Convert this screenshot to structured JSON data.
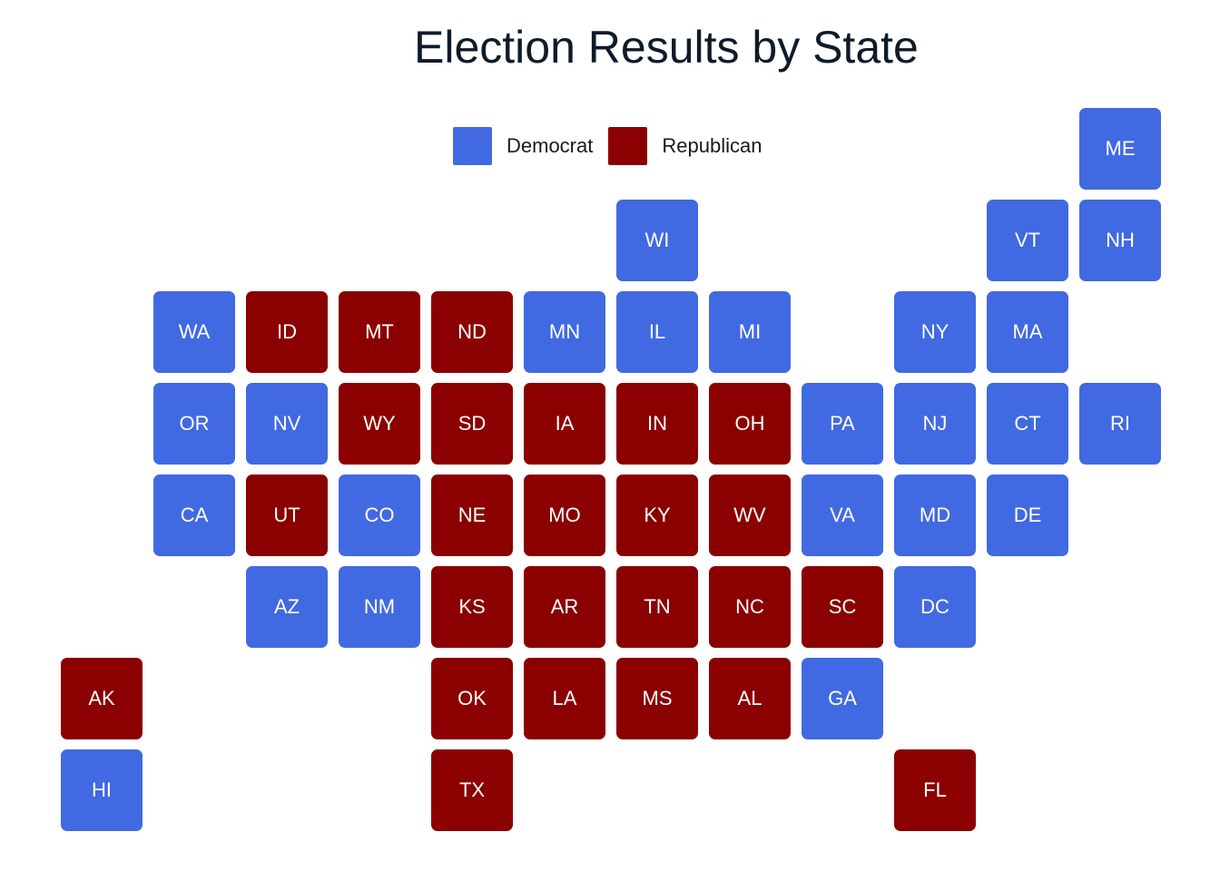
{
  "chart_data": {
    "type": "tile-grid-map",
    "title": "Election Results by State",
    "legend": {
      "placement": "top",
      "entries": [
        {
          "name": "Democrat",
          "color": "#4169e1"
        },
        {
          "name": "Republican",
          "color": "#8b0000"
        }
      ]
    },
    "grid": {
      "columns": 12,
      "rows": 8
    },
    "states": [
      {
        "abbr": "ME",
        "col": 11,
        "row": 0,
        "party": "Democrat"
      },
      {
        "abbr": "WI",
        "col": 6,
        "row": 1,
        "party": "Democrat"
      },
      {
        "abbr": "VT",
        "col": 10,
        "row": 1,
        "party": "Democrat"
      },
      {
        "abbr": "NH",
        "col": 11,
        "row": 1,
        "party": "Democrat"
      },
      {
        "abbr": "WA",
        "col": 1,
        "row": 2,
        "party": "Democrat"
      },
      {
        "abbr": "ID",
        "col": 2,
        "row": 2,
        "party": "Republican"
      },
      {
        "abbr": "MT",
        "col": 3,
        "row": 2,
        "party": "Republican"
      },
      {
        "abbr": "ND",
        "col": 4,
        "row": 2,
        "party": "Republican"
      },
      {
        "abbr": "MN",
        "col": 5,
        "row": 2,
        "party": "Democrat"
      },
      {
        "abbr": "IL",
        "col": 6,
        "row": 2,
        "party": "Democrat"
      },
      {
        "abbr": "MI",
        "col": 7,
        "row": 2,
        "party": "Democrat"
      },
      {
        "abbr": "NY",
        "col": 9,
        "row": 2,
        "party": "Democrat"
      },
      {
        "abbr": "MA",
        "col": 10,
        "row": 2,
        "party": "Democrat"
      },
      {
        "abbr": "OR",
        "col": 1,
        "row": 3,
        "party": "Democrat"
      },
      {
        "abbr": "NV",
        "col": 2,
        "row": 3,
        "party": "Democrat"
      },
      {
        "abbr": "WY",
        "col": 3,
        "row": 3,
        "party": "Republican"
      },
      {
        "abbr": "SD",
        "col": 4,
        "row": 3,
        "party": "Republican"
      },
      {
        "abbr": "IA",
        "col": 5,
        "row": 3,
        "party": "Republican"
      },
      {
        "abbr": "IN",
        "col": 6,
        "row": 3,
        "party": "Republican"
      },
      {
        "abbr": "OH",
        "col": 7,
        "row": 3,
        "party": "Republican"
      },
      {
        "abbr": "PA",
        "col": 8,
        "row": 3,
        "party": "Democrat"
      },
      {
        "abbr": "NJ",
        "col": 9,
        "row": 3,
        "party": "Democrat"
      },
      {
        "abbr": "CT",
        "col": 10,
        "row": 3,
        "party": "Democrat"
      },
      {
        "abbr": "RI",
        "col": 11,
        "row": 3,
        "party": "Democrat"
      },
      {
        "abbr": "CA",
        "col": 1,
        "row": 4,
        "party": "Democrat"
      },
      {
        "abbr": "UT",
        "col": 2,
        "row": 4,
        "party": "Republican"
      },
      {
        "abbr": "CO",
        "col": 3,
        "row": 4,
        "party": "Democrat"
      },
      {
        "abbr": "NE",
        "col": 4,
        "row": 4,
        "party": "Republican"
      },
      {
        "abbr": "MO",
        "col": 5,
        "row": 4,
        "party": "Republican"
      },
      {
        "abbr": "KY",
        "col": 6,
        "row": 4,
        "party": "Republican"
      },
      {
        "abbr": "WV",
        "col": 7,
        "row": 4,
        "party": "Republican"
      },
      {
        "abbr": "VA",
        "col": 8,
        "row": 4,
        "party": "Democrat"
      },
      {
        "abbr": "MD",
        "col": 9,
        "row": 4,
        "party": "Democrat"
      },
      {
        "abbr": "DE",
        "col": 10,
        "row": 4,
        "party": "Democrat"
      },
      {
        "abbr": "AZ",
        "col": 2,
        "row": 5,
        "party": "Democrat"
      },
      {
        "abbr": "NM",
        "col": 3,
        "row": 5,
        "party": "Democrat"
      },
      {
        "abbr": "KS",
        "col": 4,
        "row": 5,
        "party": "Republican"
      },
      {
        "abbr": "AR",
        "col": 5,
        "row": 5,
        "party": "Republican"
      },
      {
        "abbr": "TN",
        "col": 6,
        "row": 5,
        "party": "Republican"
      },
      {
        "abbr": "NC",
        "col": 7,
        "row": 5,
        "party": "Republican"
      },
      {
        "abbr": "SC",
        "col": 8,
        "row": 5,
        "party": "Republican"
      },
      {
        "abbr": "DC",
        "col": 9,
        "row": 5,
        "party": "Democrat"
      },
      {
        "abbr": "AK",
        "col": 0,
        "row": 6,
        "party": "Republican"
      },
      {
        "abbr": "OK",
        "col": 4,
        "row": 6,
        "party": "Republican"
      },
      {
        "abbr": "LA",
        "col": 5,
        "row": 6,
        "party": "Republican"
      },
      {
        "abbr": "MS",
        "col": 6,
        "row": 6,
        "party": "Republican"
      },
      {
        "abbr": "AL",
        "col": 7,
        "row": 6,
        "party": "Republican"
      },
      {
        "abbr": "GA",
        "col": 8,
        "row": 6,
        "party": "Democrat"
      },
      {
        "abbr": "HI",
        "col": 0,
        "row": 7,
        "party": "Democrat"
      },
      {
        "abbr": "TX",
        "col": 4,
        "row": 7,
        "party": "Republican"
      },
      {
        "abbr": "FL",
        "col": 9,
        "row": 7,
        "party": "Republican"
      }
    ]
  }
}
